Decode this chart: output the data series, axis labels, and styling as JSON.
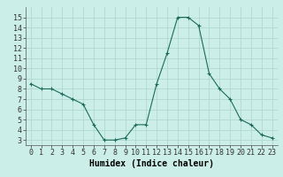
{
  "x": [
    0,
    1,
    2,
    3,
    4,
    5,
    6,
    7,
    8,
    9,
    10,
    11,
    12,
    13,
    14,
    15,
    16,
    17,
    18,
    19,
    20,
    21,
    22,
    23
  ],
  "y": [
    8.5,
    8.0,
    8.0,
    7.5,
    7.0,
    6.5,
    4.5,
    3.0,
    3.0,
    3.2,
    4.5,
    4.5,
    8.5,
    11.5,
    15.0,
    15.0,
    14.2,
    9.5,
    8.0,
    7.0,
    5.0,
    4.5,
    3.5,
    3.2
  ],
  "xlabel": "Humidex (Indice chaleur)",
  "ylim": [
    2.5,
    16
  ],
  "xlim": [
    -0.5,
    23.5
  ],
  "yticks": [
    3,
    4,
    5,
    6,
    7,
    8,
    9,
    10,
    11,
    12,
    13,
    14,
    15
  ],
  "xticks": [
    0,
    1,
    2,
    3,
    4,
    5,
    6,
    7,
    8,
    9,
    10,
    11,
    12,
    13,
    14,
    15,
    16,
    17,
    18,
    19,
    20,
    21,
    22,
    23
  ],
  "line_color": "#1a6b5a",
  "marker": "+",
  "bg_color": "#cceee8",
  "grid_color": "#aad4cc",
  "xlabel_fontsize": 7,
  "tick_fontsize": 6
}
